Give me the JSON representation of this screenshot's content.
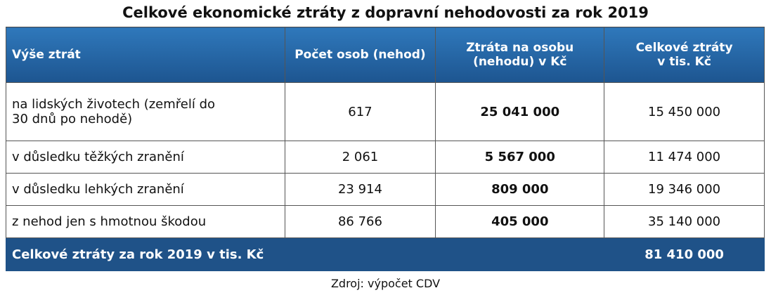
{
  "title": "Celkové ekonomické ztráty z dopravní nehodovosti za rok 2019",
  "table": {
    "header": [
      "Výše ztrát",
      "Počet osob (nehod)",
      "Ztráta na osobu (nehodu) v Kč",
      "Celkové ztráty v tis. Kč"
    ],
    "rows": [
      [
        "na lidských životech (zemřelí do 30 dnů po nehodě)",
        "617",
        "25 041 000",
        "15 450 000"
      ],
      [
        "v důsledku těžkých zranění",
        "2 061",
        "5 567 000",
        "11 474 000"
      ],
      [
        "v důsledku lehkých zranění",
        "23 914",
        "809 000",
        "19 346 000"
      ],
      [
        "z nehod jen s hmotnou škodou",
        "86 766",
        "405 000",
        "35 140 000"
      ]
    ],
    "footer": [
      "Celkové ztráty za rok 2019 v tis. Kč",
      "81 410 000"
    ]
  },
  "source": "Zdroj: výpočet CDV"
}
